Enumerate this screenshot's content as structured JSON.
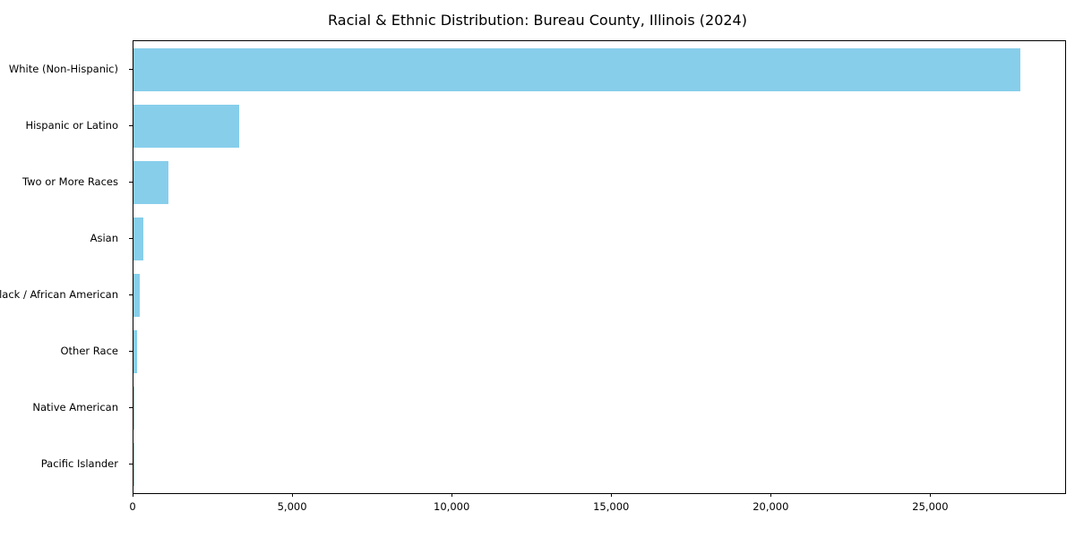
{
  "chart_data": {
    "type": "bar",
    "orientation": "horizontal",
    "title": "Racial & Ethnic Distribution: Bureau County, Illinois (2024)",
    "categories": [
      "White (Non-Hispanic)",
      "Hispanic or Latino",
      "Two or More Races",
      "Asian",
      "Black / African American",
      "Other Race",
      "Native American",
      "Pacific Islander"
    ],
    "values": [
      27800,
      3300,
      1100,
      310,
      200,
      100,
      30,
      10
    ],
    "xlabel": "",
    "ylabel": "",
    "xlim": [
      0,
      29200
    ],
    "xticks": [
      0,
      5000,
      10000,
      15000,
      20000,
      25000
    ],
    "xtick_labels": [
      "0",
      "5,000",
      "10,000",
      "15,000",
      "20,000",
      "25,000"
    ],
    "bar_color": "#87CEEB",
    "axis_color": "#000000",
    "grid": false,
    "legend": false
  }
}
